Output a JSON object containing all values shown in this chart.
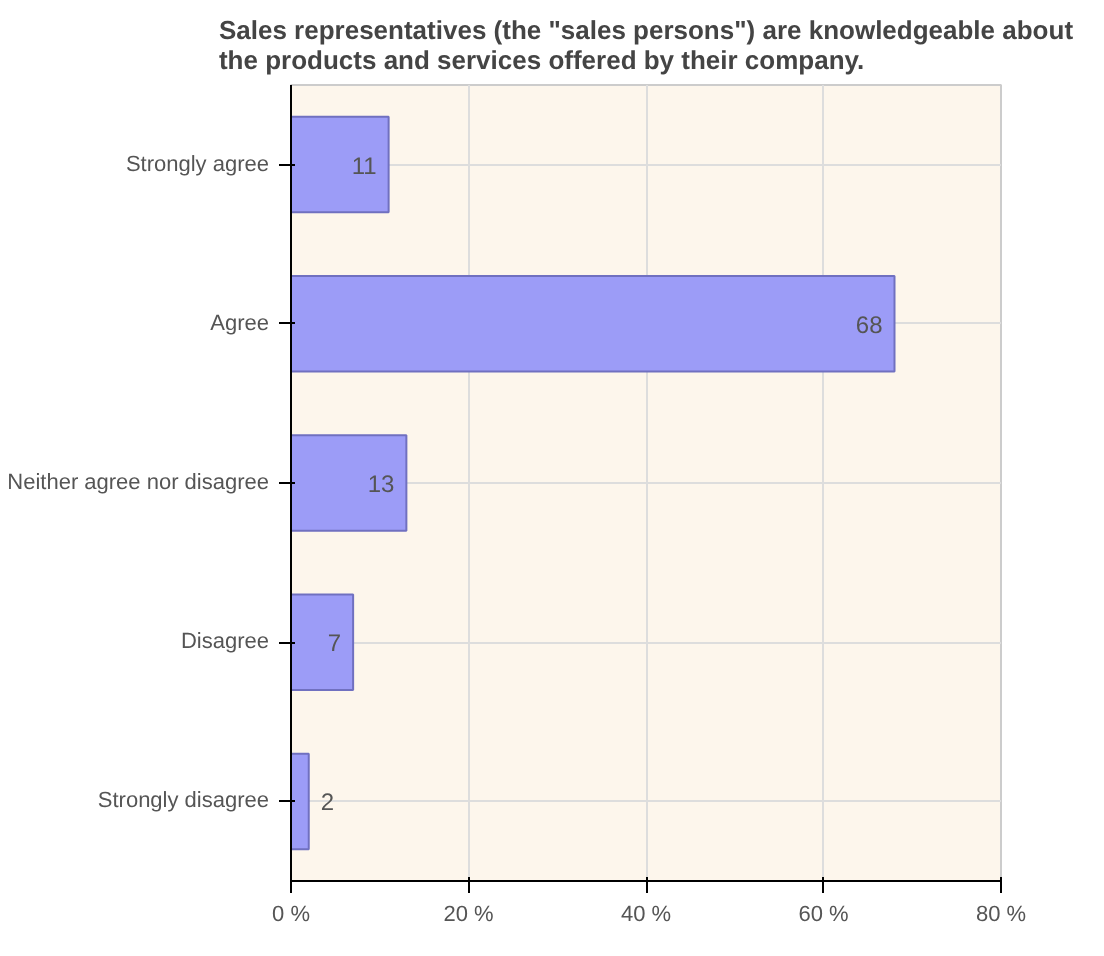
{
  "chart_data": {
    "type": "bar",
    "orientation": "horizontal",
    "title": "Sales representatives (the \"sales persons\") are knowledgeable about the products and services offered by their company.",
    "categories": [
      "Strongly agree",
      "Agree",
      "Neither agree nor disagree",
      "Disagree",
      "Strongly disagree"
    ],
    "values": [
      11,
      68,
      13,
      7,
      2
    ],
    "color": "#9c9cf7",
    "data_labels": true,
    "xlim": [
      0,
      80
    ],
    "xticks": [
      {
        "value": 0,
        "label": "0 %"
      },
      {
        "value": 20,
        "label": "20 %"
      },
      {
        "value": 40,
        "label": "40 %"
      },
      {
        "value": 60,
        "label": "60 %"
      },
      {
        "value": 80,
        "label": "80 %"
      }
    ],
    "grid": true
  }
}
